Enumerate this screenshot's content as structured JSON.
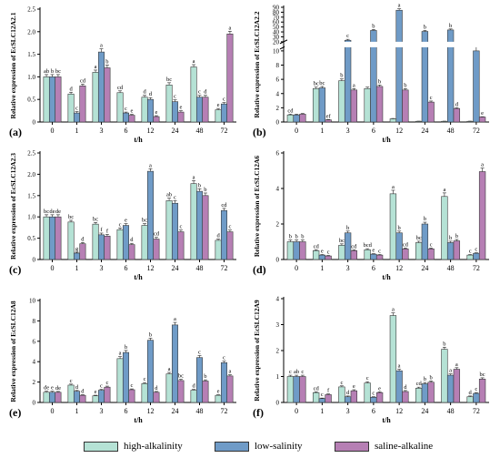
{
  "colors": {
    "high_alkalinity": "#b5e2d5",
    "low_salinity": "#6f9bc7",
    "saline_alkaline": "#b67fb4",
    "stroke": "#3a3a3a"
  },
  "legend": {
    "items": [
      "high-alkalinity",
      "low-salinity",
      "saline-alkaline"
    ]
  },
  "chart_data": [
    {
      "type": "bar",
      "panel_label": "(a)",
      "ylabel": "Relative expression of EcSLC12A2.1",
      "xlabel": "t/h",
      "categories": [
        "0",
        "1",
        "3",
        "6",
        "12",
        "24",
        "48",
        "72"
      ],
      "ylim": [
        0,
        2.5
      ],
      "yticks": [
        0,
        0.5,
        1.0,
        1.5,
        2.0,
        2.5
      ],
      "ytick_labels": [
        "0",
        "0.5",
        "1.0",
        "1.5",
        "2.0",
        "2.5"
      ],
      "series": [
        {
          "name": "high-alkalinity",
          "values": [
            1.0,
            0.62,
            1.1,
            0.65,
            0.55,
            0.82,
            1.22,
            0.27
          ],
          "errors": [
            0.05,
            0.04,
            0.05,
            0.04,
            0.04,
            0.05,
            0.05,
            0.03
          ],
          "letters": [
            "ab",
            "d",
            "a",
            "cd",
            "d",
            "bc",
            "a",
            "e"
          ]
        },
        {
          "name": "low-salinity",
          "values": [
            1.0,
            0.2,
            1.55,
            0.2,
            0.5,
            0.45,
            0.55,
            0.4
          ],
          "errors": [
            0.05,
            0.03,
            0.07,
            0.02,
            0.04,
            0.04,
            0.04,
            0.03
          ],
          "letters": [
            "b",
            "c",
            "a",
            "c",
            "d",
            "c",
            "c",
            "c"
          ]
        },
        {
          "name": "saline-alkaline",
          "values": [
            1.0,
            0.8,
            1.2,
            0.15,
            0.12,
            0.22,
            0.55,
            1.95
          ],
          "errors": [
            0.05,
            0.04,
            0.06,
            0.02,
            0.02,
            0.03,
            0.04,
            0.06
          ],
          "letters": [
            "bc",
            "cd",
            "b",
            "e",
            "e",
            "e",
            "d",
            "a"
          ]
        }
      ]
    },
    {
      "type": "bar",
      "panel_label": "(b)",
      "ylabel": "Relative expression of EcSLC12A2.2",
      "xlabel": "t/h",
      "categories": [
        "0",
        "1",
        "3",
        "6",
        "12",
        "24",
        "48",
        "72"
      ],
      "broken_axis": true,
      "ytick_labels": [
        "0",
        "2",
        "4",
        "6",
        "8",
        "10",
        "20",
        "30",
        "40",
        "50",
        "60",
        "70",
        "80",
        "90"
      ],
      "series": [
        {
          "name": "high-alkalinity",
          "values": [
            1.0,
            4.7,
            5.8,
            4.7,
            0.45,
            0.1,
            0.1,
            0.1
          ],
          "errors": [
            0.1,
            0.2,
            0.25,
            0.2,
            0.05,
            0.02,
            0.02,
            0.02
          ],
          "letters": [
            "cd",
            "bc",
            "b",
            "",
            "",
            "",
            "",
            ""
          ]
        },
        {
          "name": "low-salinity",
          "values": [
            1.0,
            4.8,
            23,
            43,
            84,
            41,
            44,
            10
          ],
          "errors": [
            0.1,
            0.2,
            2,
            2,
            3,
            2,
            2,
            1
          ],
          "letters": [
            "",
            "bc",
            "c",
            "b",
            "a",
            "b",
            "b",
            "c"
          ]
        },
        {
          "name": "saline-alkaline",
          "values": [
            1.1,
            0.3,
            4.5,
            5.0,
            4.5,
            2.8,
            1.9,
            0.7
          ],
          "errors": [
            0.1,
            0.05,
            0.2,
            0.2,
            0.2,
            0.15,
            0.1,
            0.05
          ],
          "letters": [
            "",
            "ef",
            "a",
            "b",
            "b",
            "c",
            "d",
            "e"
          ]
        }
      ]
    },
    {
      "type": "bar",
      "panel_label": "(c)",
      "ylabel": "Relative expression of EcSLC12A2.3",
      "xlabel": "t/h",
      "categories": [
        "0",
        "1",
        "3",
        "6",
        "12",
        "24",
        "48",
        "72"
      ],
      "ylim": [
        0,
        2.5
      ],
      "yticks": [
        0,
        0.5,
        1.0,
        1.5,
        2.0,
        2.5
      ],
      "ytick_labels": [
        "0",
        "0.5",
        "1.0",
        "1.5",
        "2.0",
        "2.5"
      ],
      "series": [
        {
          "name": "high-alkalinity",
          "values": [
            1.0,
            0.88,
            0.83,
            0.7,
            0.8,
            1.38,
            1.78,
            0.45
          ],
          "errors": [
            0.05,
            0.04,
            0.04,
            0.04,
            0.04,
            0.06,
            0.07,
            0.03
          ],
          "letters": [
            "bc",
            "bc",
            "bc",
            "c",
            "bc",
            "ab",
            "a",
            "d"
          ]
        },
        {
          "name": "low-salinity",
          "values": [
            1.0,
            0.15,
            0.58,
            0.8,
            2.07,
            1.32,
            1.6,
            1.15
          ],
          "errors": [
            0.05,
            0.02,
            0.04,
            0.04,
            0.06,
            0.06,
            0.06,
            0.05
          ],
          "letters": [
            "de",
            "g",
            "f",
            "e",
            "a",
            "c",
            "b",
            "cd"
          ]
        },
        {
          "name": "saline-alkaline",
          "values": [
            1.0,
            0.37,
            0.55,
            0.35,
            0.48,
            0.65,
            1.5,
            0.65
          ],
          "errors": [
            0.05,
            0.03,
            0.04,
            0.03,
            0.04,
            0.04,
            0.06,
            0.04
          ],
          "letters": [
            "de",
            "d",
            "f",
            "d",
            "cd",
            "c",
            "b",
            "c"
          ]
        }
      ]
    },
    {
      "type": "bar",
      "panel_label": "(d)",
      "ylabel": "Relative expression of EcSLC12A6",
      "xlabel": "t/h",
      "categories": [
        "0",
        "1",
        "3",
        "6",
        "12",
        "24",
        "48",
        "72"
      ],
      "ylim": [
        0,
        6
      ],
      "yticks": [
        0,
        2,
        4,
        6
      ],
      "ytick_labels": [
        "0",
        "2",
        "4",
        "6"
      ],
      "series": [
        {
          "name": "high-alkalinity",
          "values": [
            1.0,
            0.5,
            0.8,
            0.55,
            3.7,
            0.95,
            3.55,
            0.25
          ],
          "errors": [
            0.1,
            0.05,
            0.08,
            0.06,
            0.2,
            0.08,
            0.2,
            0.03
          ],
          "letters": [
            "b",
            "cd",
            "bc",
            "bcd",
            "a",
            "bc",
            "a",
            "c"
          ]
        },
        {
          "name": "low-salinity",
          "values": [
            1.0,
            0.25,
            1.5,
            0.3,
            1.5,
            2.0,
            0.95,
            0.35
          ],
          "errors": [
            0.1,
            0.03,
            0.1,
            0.03,
            0.1,
            0.1,
            0.08,
            0.03
          ],
          "letters": [
            "b",
            "e",
            "b",
            "e",
            "b",
            "b",
            "b",
            "c"
          ]
        },
        {
          "name": "saline-alkaline",
          "values": [
            1.0,
            0.2,
            0.5,
            0.25,
            0.6,
            0.6,
            1.05,
            4.95
          ],
          "errors": [
            0.1,
            0.03,
            0.05,
            0.03,
            0.05,
            0.05,
            0.08,
            0.2
          ],
          "letters": [
            "b",
            "c",
            "cd",
            "c",
            "cd",
            "c",
            "b",
            "a"
          ]
        }
      ]
    },
    {
      "type": "bar",
      "panel_label": "(e)",
      "ylabel": "Relative expression of EcSLC12A8",
      "xlabel": "t/h",
      "categories": [
        "0",
        "1",
        "3",
        "6",
        "12",
        "24",
        "48",
        "72"
      ],
      "ylim": [
        0,
        10
      ],
      "yticks": [
        0,
        2,
        4,
        6,
        8,
        10
      ],
      "ytick_labels": [
        "0",
        "2",
        "4",
        "6",
        "8",
        "10"
      ],
      "series": [
        {
          "name": "high-alkalinity",
          "values": [
            1.0,
            1.7,
            0.65,
            4.3,
            1.85,
            2.8,
            1.2,
            0.7
          ],
          "errors": [
            0.1,
            0.1,
            0.06,
            0.2,
            0.1,
            0.15,
            0.08,
            0.06
          ],
          "letters": [
            "de",
            "c",
            "e",
            "a",
            "c",
            "a",
            "d",
            "e"
          ]
        },
        {
          "name": "low-salinity",
          "values": [
            1.0,
            1.1,
            1.2,
            4.9,
            6.1,
            7.6,
            4.4,
            3.9
          ],
          "errors": [
            0.1,
            0.08,
            0.08,
            0.2,
            0.2,
            0.25,
            0.2,
            0.15
          ],
          "letters": [
            "e",
            "d",
            "c",
            "b",
            "b",
            "a",
            "c",
            "c"
          ]
        },
        {
          "name": "saline-alkaline",
          "values": [
            1.0,
            0.7,
            1.5,
            1.25,
            1.0,
            2.15,
            2.1,
            2.6
          ],
          "errors": [
            0.08,
            0.06,
            0.1,
            0.08,
            0.08,
            0.12,
            0.12,
            0.12
          ],
          "letters": [
            "de",
            "d",
            "c",
            "c",
            "d",
            "bc",
            "b",
            "a"
          ]
        }
      ]
    },
    {
      "type": "bar",
      "panel_label": "(f)",
      "ylabel": "Relative expression of EcSLC12A9",
      "xlabel": "t/h",
      "categories": [
        "0",
        "1",
        "3",
        "6",
        "12",
        "24",
        "48",
        "72"
      ],
      "ylim": [
        0,
        4
      ],
      "yticks": [
        0,
        1,
        2,
        3,
        4
      ],
      "ytick_labels": [
        "0",
        "1",
        "2",
        "3",
        "4"
      ],
      "series": [
        {
          "name": "high-alkalinity",
          "values": [
            1.0,
            0.38,
            0.6,
            0.75,
            3.35,
            0.55,
            2.05,
            0.22
          ],
          "errors": [
            0.05,
            0.03,
            0.04,
            0.05,
            0.1,
            0.04,
            0.08,
            0.03
          ],
          "letters": [
            "c",
            "cd",
            "c",
            "c",
            "a",
            "cd",
            "b",
            "d"
          ]
        },
        {
          "name": "low-salinity",
          "values": [
            1.0,
            0.15,
            0.22,
            0.2,
            1.22,
            0.72,
            1.05,
            0.35
          ],
          "errors": [
            0.05,
            0.02,
            0.03,
            0.02,
            0.06,
            0.05,
            0.05,
            0.03
          ],
          "letters": [
            "ab",
            "c",
            "d",
            "c",
            "a",
            "b",
            "a",
            "c"
          ]
        },
        {
          "name": "saline-alkaline",
          "values": [
            1.0,
            0.3,
            0.45,
            0.38,
            0.42,
            0.78,
            1.28,
            0.9
          ],
          "errors": [
            0.05,
            0.03,
            0.04,
            0.03,
            0.04,
            0.05,
            0.06,
            0.05
          ],
          "letters": [
            "c",
            "f",
            "e",
            "e",
            "d",
            "b",
            "a",
            "bc"
          ]
        }
      ]
    }
  ]
}
